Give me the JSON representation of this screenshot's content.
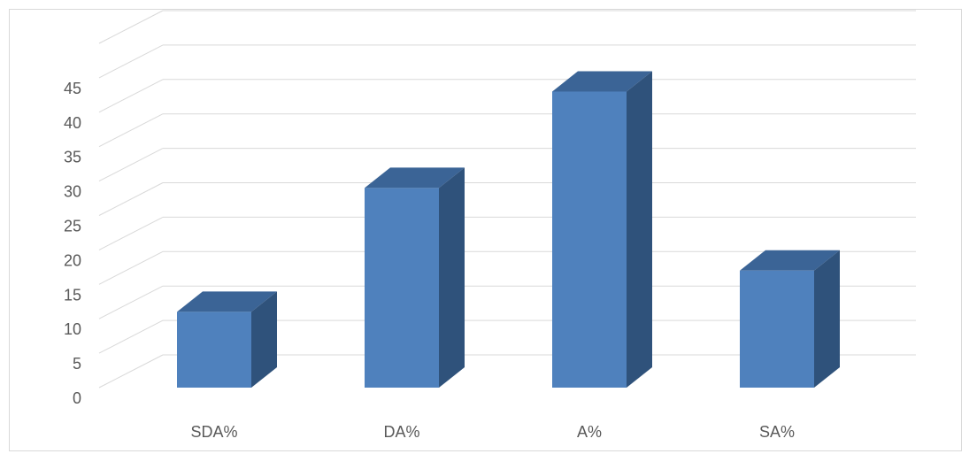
{
  "chart_data": {
    "type": "bar",
    "style": "3d-column",
    "categories": [
      "SDA%",
      "DA%",
      "A%",
      "SA%"
    ],
    "series": [
      {
        "values": [
          11,
          29,
          43,
          17
        ]
      }
    ],
    "yticks": [
      "0",
      "5",
      "10",
      "15",
      "20",
      "25",
      "30",
      "35",
      "40",
      "45"
    ],
    "ylim": [
      0,
      50
    ],
    "grid": true,
    "title": "",
    "xlabel": "",
    "ylabel": "",
    "colors": {
      "front": "#4f81bd",
      "side": "#2f527b",
      "top": "#3b6496",
      "grid": "#d9d9d9"
    }
  }
}
